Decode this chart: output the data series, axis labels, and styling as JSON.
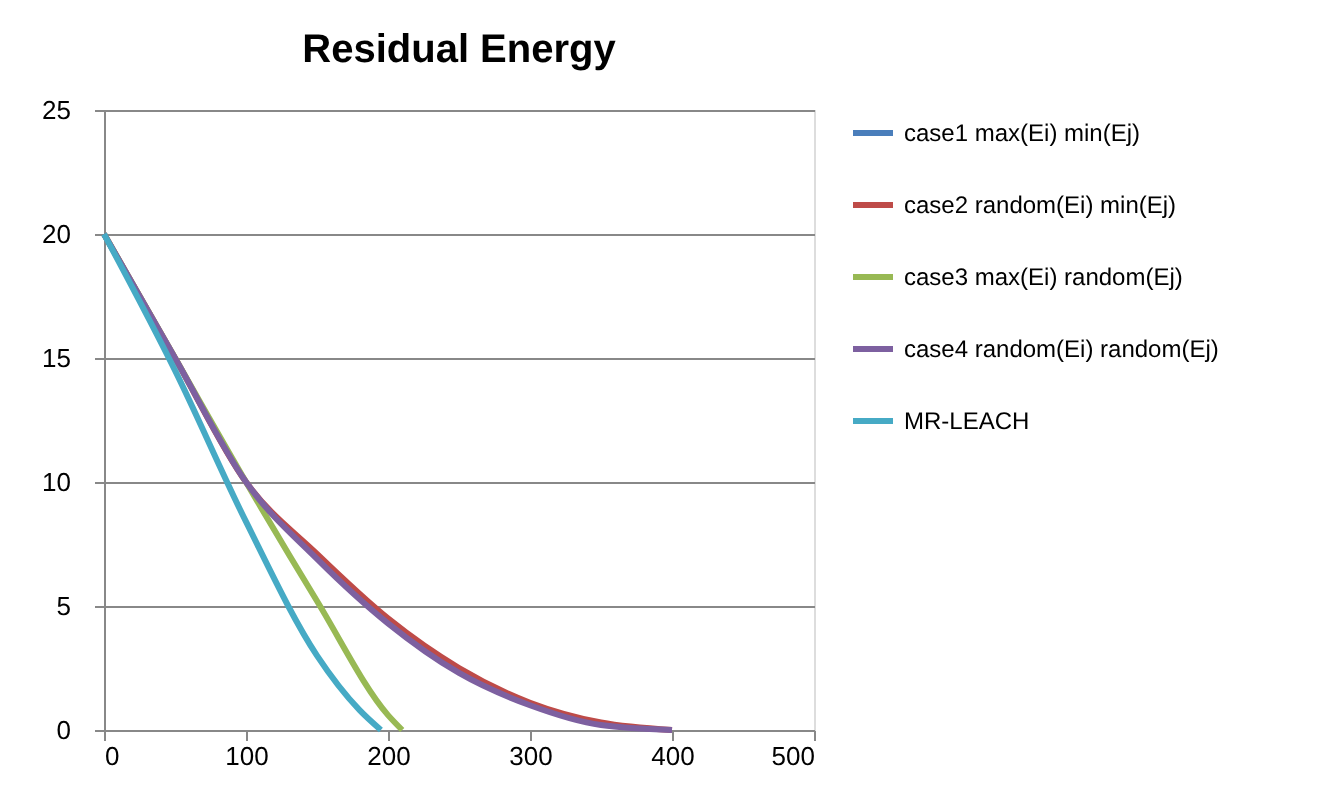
{
  "chart_data": {
    "type": "line",
    "title": "Residual Energy",
    "xlim": [
      0,
      500
    ],
    "xticks": [
      0,
      100,
      200,
      300,
      400,
      500
    ],
    "ylim": [
      0,
      25
    ],
    "yticks": [
      0,
      5,
      10,
      15,
      20,
      25
    ],
    "grid": "y",
    "legend": "right",
    "line_style": "solid",
    "marker": "none",
    "series": [
      {
        "name": "case1 max(Ei) min(Ej)",
        "color": "#4a7ebb"
      },
      {
        "name": "case2 random(Ei) min(Ej)",
        "color": "#be4b48",
        "x": [
          0,
          50,
          100,
          150,
          200,
          250,
          300,
          350,
          400
        ],
        "values": [
          20,
          15,
          10,
          7.1,
          4.5,
          2.5,
          1.1,
          0.3,
          0
        ]
      },
      {
        "name": "case3 max(Ei) random(Ej)",
        "color": "#98b954",
        "x": [
          0,
          50,
          100,
          150,
          200,
          210
        ],
        "values": [
          20,
          15,
          10,
          5.2,
          0.6,
          0
        ]
      },
      {
        "name": "case4 random(Ei) random(Ej)",
        "color": "#7d60a0",
        "x": [
          0,
          50,
          100,
          150,
          200,
          250,
          300,
          350,
          400
        ],
        "values": [
          20,
          15,
          10,
          6.9,
          4.3,
          2.3,
          1.0,
          0.2,
          0
        ]
      },
      {
        "name": "MR-LEACH",
        "color": "#46aac5",
        "x": [
          0,
          50,
          100,
          150,
          180,
          195
        ],
        "values": [
          20,
          14.5,
          8.4,
          3.0,
          0.8,
          0
        ]
      }
    ]
  }
}
